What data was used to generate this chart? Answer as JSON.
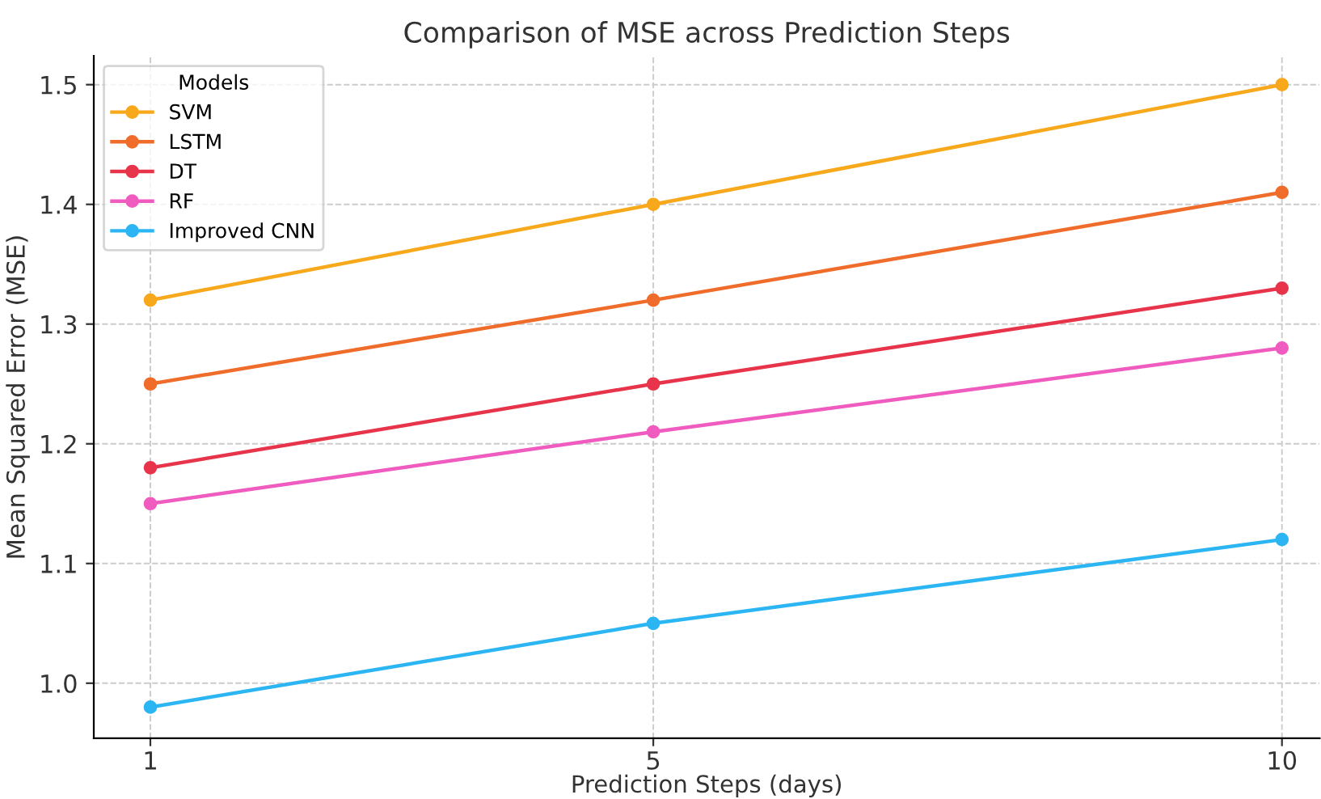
{
  "chart_data": {
    "type": "line",
    "title": "Comparison of MSE across Prediction Steps",
    "xlabel": "Prediction Steps (days)",
    "ylabel": "Mean Squared Error (MSE)",
    "legend_title": "Models",
    "legend": "top left",
    "grid": true,
    "marker": "circle",
    "line_style": "solid",
    "x": [
      1,
      5,
      10
    ],
    "xlim": [
      0.55,
      10.3
    ],
    "xticks": [
      1,
      5,
      10
    ],
    "ylim": [
      0.954,
      1.524
    ],
    "yticks": [
      {
        "value": 1.0,
        "label": "1.0"
      },
      1.1,
      1.2,
      1.3,
      1.4,
      1.5
    ],
    "series": [
      {
        "name": "SVM",
        "color": "#f7a81b",
        "values": [
          1.32,
          1.4,
          1.5
        ]
      },
      {
        "name": "LSTM",
        "color": "#f06c2a",
        "values": [
          1.25,
          1.32,
          1.41
        ]
      },
      {
        "name": "DT",
        "color": "#e8344a",
        "values": [
          1.18,
          1.25,
          1.33
        ]
      },
      {
        "name": "RF",
        "color": "#ef5bbf",
        "values": [
          1.15,
          1.21,
          1.28
        ]
      },
      {
        "name": "Improved CNN",
        "color": "#2bb5f3",
        "values": [
          0.98,
          1.05,
          1.12
        ]
      }
    ]
  }
}
